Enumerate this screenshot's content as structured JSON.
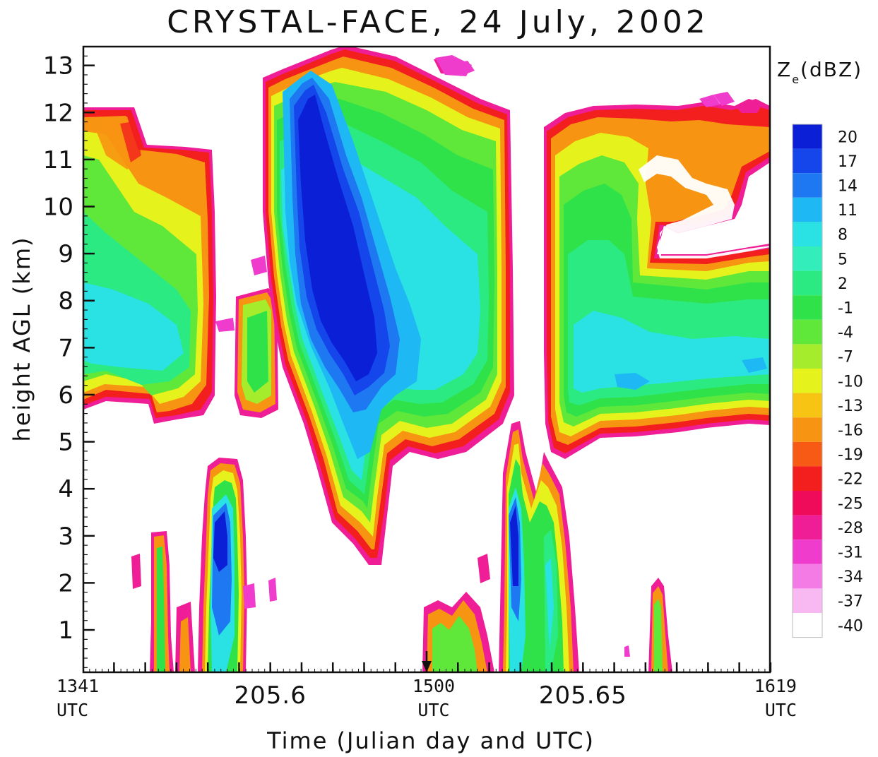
{
  "chart_data": {
    "type": "heatmap",
    "title": "CRYSTAL-FACE, 24 July, 2002",
    "xlabel": "Time (Julian day and UTC)",
    "ylabel": "height AGL (km)",
    "ylim": [
      0.1,
      13.4
    ],
    "xlim": [
      205.5701,
      205.6799
    ],
    "y_ticks": [
      "1",
      "2",
      "3",
      "4",
      "5",
      "6",
      "7",
      "8",
      "9",
      "10",
      "11",
      "12",
      "13"
    ],
    "x_tick_labels": [
      {
        "line1": "1341",
        "line2": "UTC",
        "x": 205.5701
      },
      {
        "line1": "205.6",
        "line2": "",
        "x": 205.6
      },
      {
        "line1": "1500",
        "line2": "UTC",
        "x": 205.625
      },
      {
        "line1": "205.65",
        "line2": "",
        "x": 205.65
      },
      {
        "line1": "1619",
        "line2": "UTC",
        "x": 205.6799
      }
    ],
    "marker_x": 205.625,
    "colorbar": {
      "title_main": "Z",
      "title_sub": "e",
      "title_unit": "(dBZ)",
      "levels": [
        "20",
        "17",
        "14",
        "11",
        "8",
        "5",
        "2",
        "-1",
        "-4",
        "-7",
        "-10",
        "-13",
        "-16",
        "-19",
        "-22",
        "-25",
        "-28",
        "-31",
        "-34",
        "-37",
        "-40"
      ],
      "colors": [
        "#0a1fd6",
        "#1446ec",
        "#1e78f2",
        "#1eb9f4",
        "#2ae2e4",
        "#33eebb",
        "#2bea82",
        "#2fe24a",
        "#5fe83a",
        "#a4ec2c",
        "#e6f21c",
        "#f7c414",
        "#f79412",
        "#f75a14",
        "#f31e1e",
        "#f00a5a",
        "#f01e96",
        "#f03ccc",
        "#f47ae6",
        "#f8b8f2",
        "#ffffff"
      ]
    },
    "echo_cells": [
      {
        "x": [
          205.5701,
          205.5906
        ],
        "y": [
          5.8,
          12.1
        ],
        "peak_dbz": 8
      },
      {
        "x": [
          205.5942,
          205.5981
        ],
        "y": [
          5.5,
          8.3
        ],
        "peak_dbz": 2
      },
      {
        "x": [
          205.5973,
          205.6356
        ],
        "y": [
          2.6,
          13.4
        ],
        "peak_dbz": 20
      },
      {
        "x": [
          205.6406,
          205.6799
        ],
        "y": [
          4.7,
          12.0
        ],
        "peak_dbz": 11
      },
      {
        "x": [
          205.5862,
          205.5915
        ],
        "y": [
          0.1,
          4.6
        ],
        "peak_dbz": 20
      },
      {
        "x": [
          205.5768,
          205.5815
        ],
        "y": [
          0.1,
          3.1
        ],
        "peak_dbz": 2
      },
      {
        "x": [
          205.6276,
          205.6336
        ],
        "y": [
          0.1,
          1.8
        ],
        "peak_dbz": 2
      },
      {
        "x": [
          205.6356,
          205.644
        ],
        "y": [
          0.1,
          5.3
        ],
        "peak_dbz": 20
      },
      {
        "x": [
          205.6627,
          205.6649
        ],
        "y": [
          0.1,
          2.0
        ],
        "peak_dbz": 2
      }
    ]
  }
}
